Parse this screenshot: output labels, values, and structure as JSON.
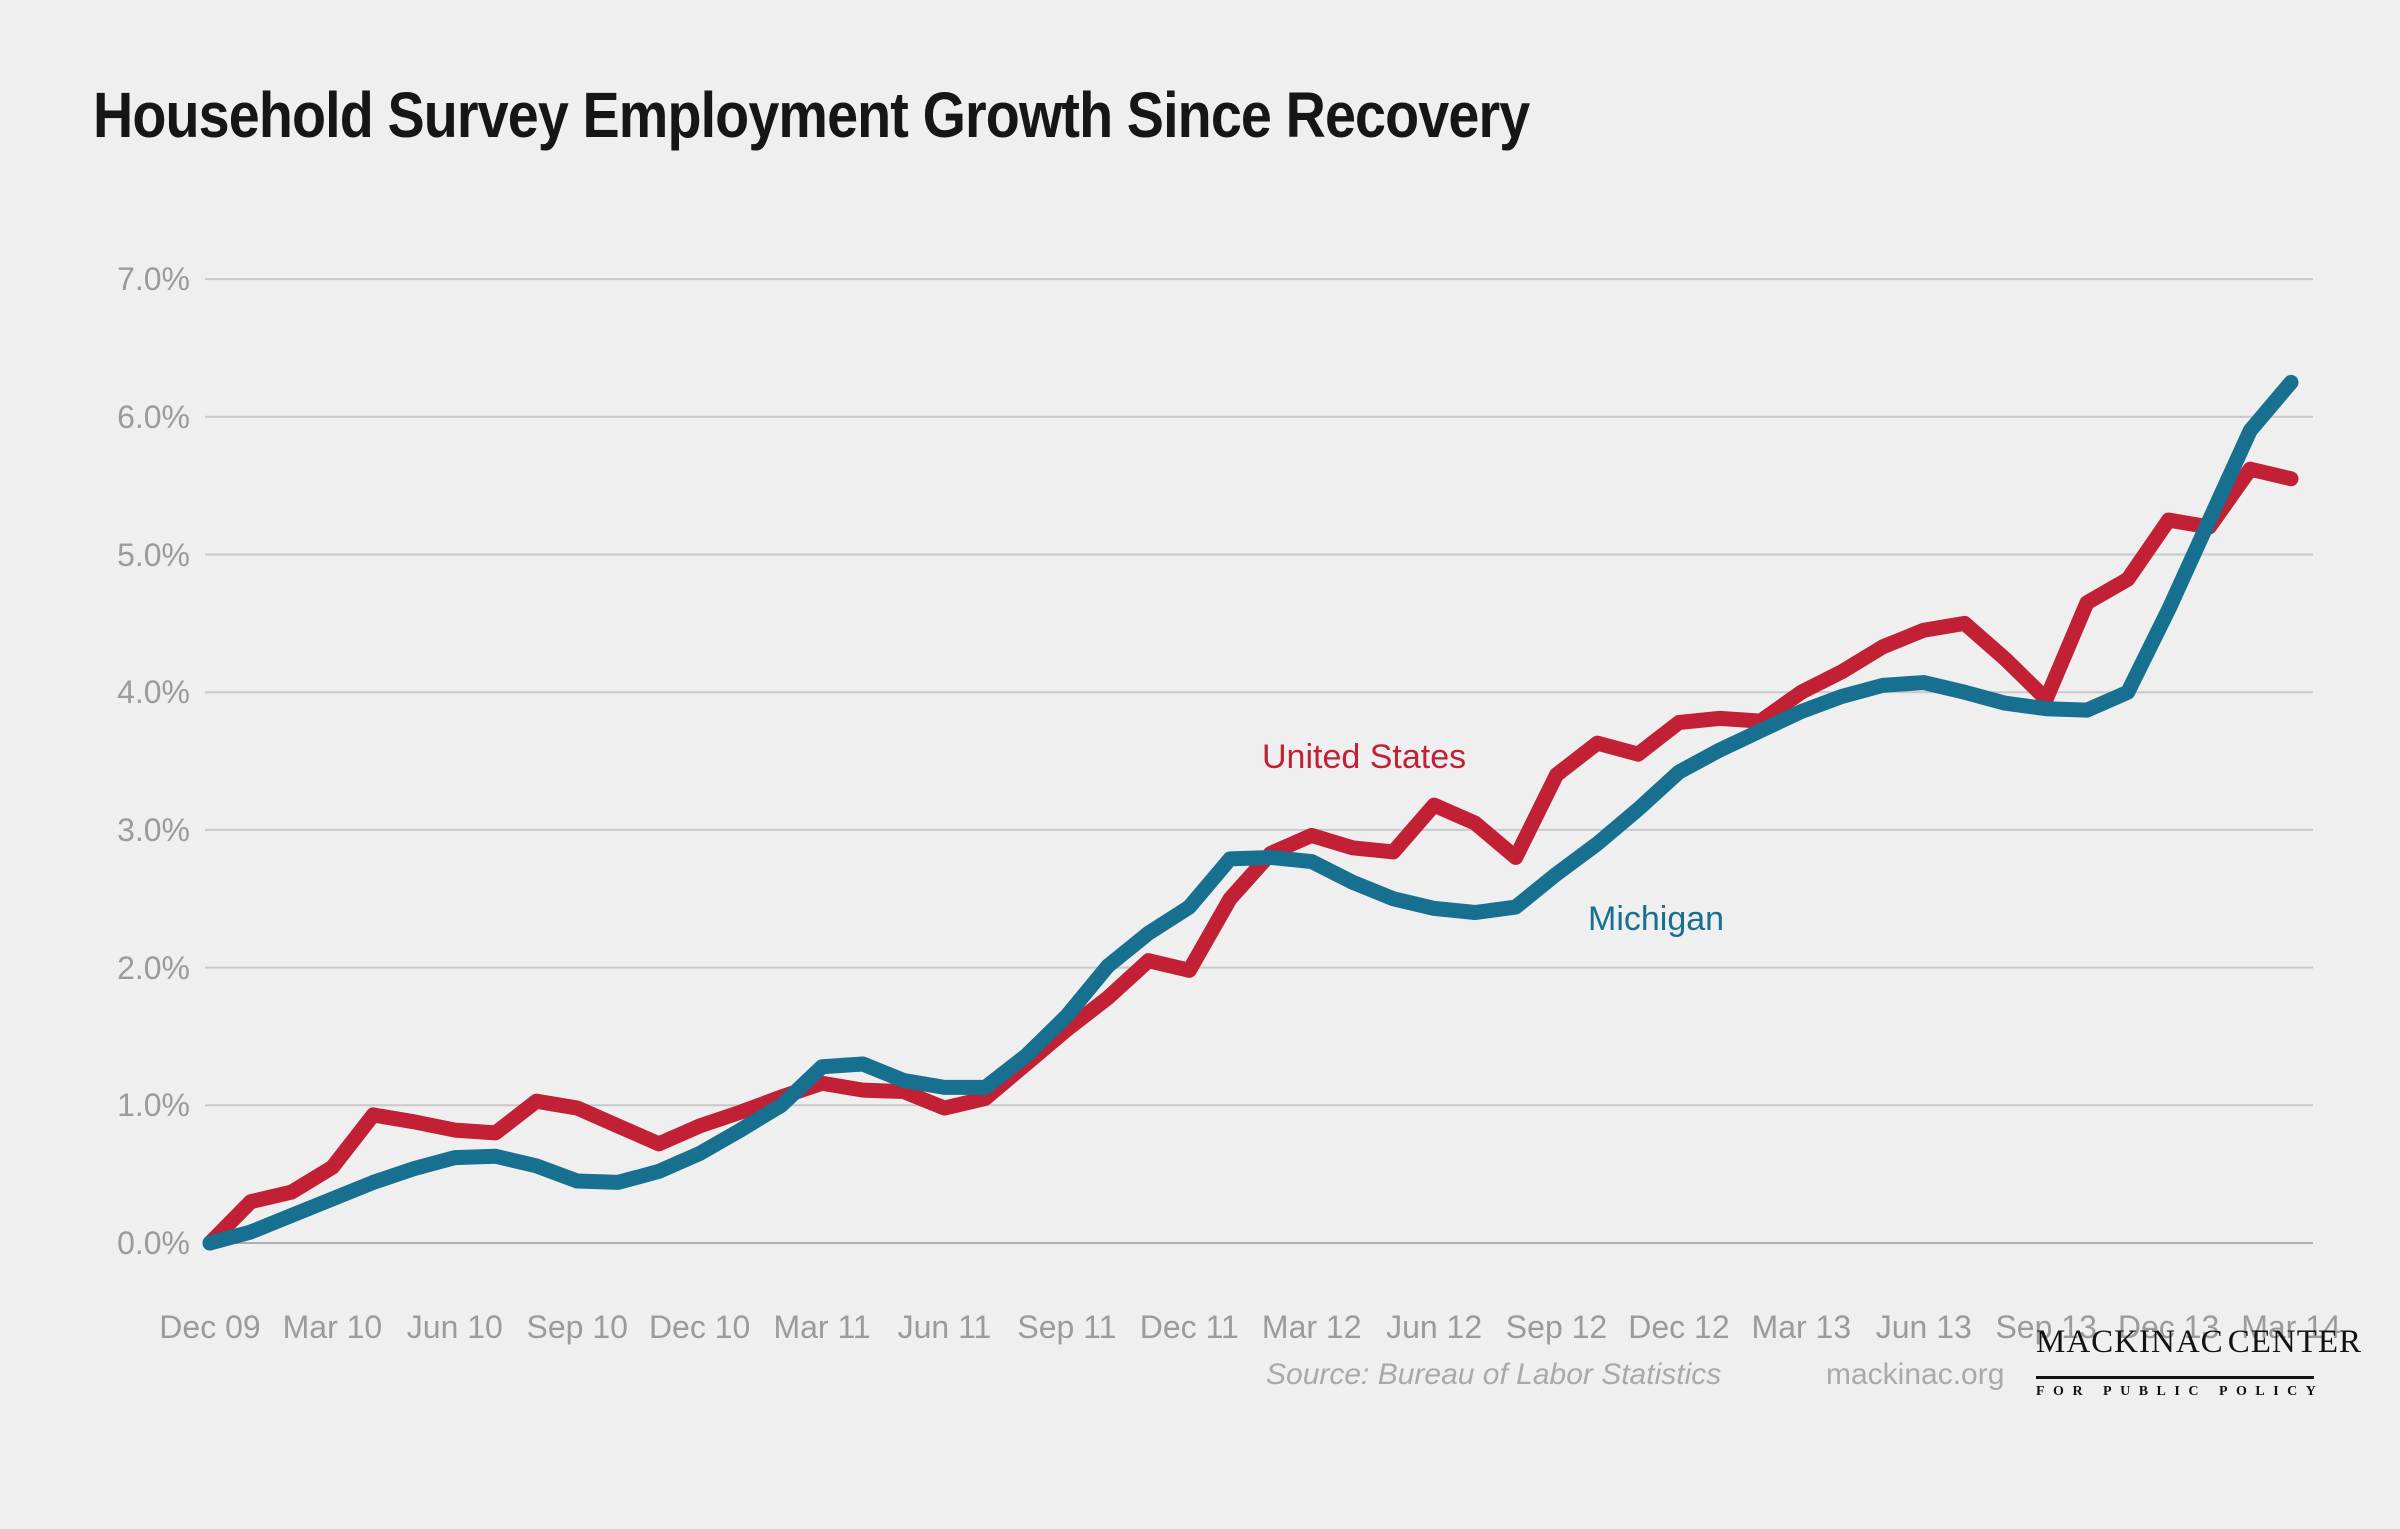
{
  "title": "Household Survey Employment Growth Since Recovery",
  "chart_data": {
    "type": "line",
    "title": "Household Survey Employment Growth Since Recovery",
    "frequency": "monthly",
    "x_tick_labels": [
      "Dec 09",
      "Mar 10",
      "Jun 10",
      "Sep 10",
      "Dec 10",
      "Mar 11",
      "Jun 11",
      "Sep 11",
      "Dec 11",
      "Mar 12",
      "Jun 12",
      "Sep 12",
      "Dec 12",
      "Mar 13",
      "Jun 13",
      "Sep 13",
      "Dec 13",
      "Mar 14"
    ],
    "y_tick_labels": [
      "7.0%",
      "6.0%",
      "5.0%",
      "4.0%",
      "3.0%",
      "2.0%",
      "1.0%",
      "0.0%"
    ],
    "ylim": [
      0.0,
      7.0
    ],
    "y_unit": "percent",
    "grid": true,
    "legend_position": "inline-annotations",
    "x_months": [
      "Dec 09",
      "Jan 10",
      "Feb 10",
      "Mar 10",
      "Apr 10",
      "May 10",
      "Jun 10",
      "Jul 10",
      "Aug 10",
      "Sep 10",
      "Oct 10",
      "Nov 10",
      "Dec 10",
      "Jan 11",
      "Feb 11",
      "Mar 11",
      "Apr 11",
      "May 11",
      "Jun 11",
      "Jul 11",
      "Aug 11",
      "Sep 11",
      "Oct 11",
      "Nov 11",
      "Dec 11",
      "Jan 12",
      "Feb 12",
      "Mar 12",
      "Apr 12",
      "May 12",
      "Jun 12",
      "Jul 12",
      "Aug 12",
      "Sep 12",
      "Oct 12",
      "Nov 12",
      "Dec 12",
      "Jan 13",
      "Feb 13",
      "Mar 13",
      "Apr 13",
      "May 13",
      "Jun 13",
      "Jul 13",
      "Aug 13",
      "Sep 13",
      "Oct 13",
      "Nov 13",
      "Dec 13",
      "Jan 14",
      "Feb 14",
      "Mar 14"
    ],
    "series": [
      {
        "name": "United States",
        "color": "#c22035",
        "values": [
          0.0,
          0.3,
          0.37,
          0.55,
          0.93,
          0.88,
          0.82,
          0.8,
          1.03,
          0.98,
          0.85,
          0.72,
          0.85,
          0.95,
          1.06,
          1.16,
          1.11,
          1.1,
          0.98,
          1.05,
          1.3,
          1.55,
          1.78,
          2.05,
          1.98,
          2.5,
          2.83,
          2.96,
          2.87,
          2.84,
          3.18,
          3.05,
          2.8,
          3.4,
          3.63,
          3.55,
          3.78,
          3.81,
          3.79,
          4.0,
          4.15,
          4.33,
          4.45,
          4.5,
          4.24,
          3.95,
          4.65,
          4.82,
          5.25,
          5.2,
          5.62,
          5.55
        ]
      },
      {
        "name": "Michigan",
        "color": "#17708f",
        "values": [
          0.0,
          0.08,
          0.2,
          0.32,
          0.44,
          0.54,
          0.62,
          0.63,
          0.56,
          0.45,
          0.44,
          0.52,
          0.65,
          0.82,
          1.0,
          1.28,
          1.3,
          1.18,
          1.13,
          1.13,
          1.36,
          1.65,
          2.01,
          2.25,
          2.44,
          2.79,
          2.8,
          2.77,
          2.62,
          2.5,
          2.43,
          2.4,
          2.44,
          2.68,
          2.9,
          3.15,
          3.42,
          3.58,
          3.72,
          3.86,
          3.97,
          4.05,
          4.07,
          4.0,
          3.92,
          3.88,
          3.87,
          4.0,
          4.6,
          5.25,
          5.9,
          6.25
        ]
      }
    ]
  },
  "footer": {
    "source": "Source: Bureau of Labor Statistics",
    "website": "mackinac.org",
    "logo": {
      "name_left": "MACKINAC",
      "name_right": "CENTER",
      "tagline": "FOR PUBLIC POLICY"
    }
  },
  "colors": {
    "background": "#efefef",
    "gridline": "#c9c9c9",
    "baseline": "#b0b0b0",
    "axis_text": "#9b9b9b",
    "title_text": "#161616",
    "footer_text": "#a9a9a9",
    "logo_text": "#121212",
    "united_states_line": "#c22035",
    "michigan_line": "#17708f"
  }
}
